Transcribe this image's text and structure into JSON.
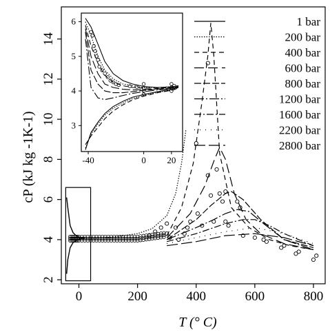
{
  "chart_data": {
    "type": "line",
    "xlabel": "T (° C)",
    "ylabel": "cP (kJ kg -1K-1)",
    "xlim": [
      -60,
      840
    ],
    "ylim": [
      1.8,
      15.6
    ],
    "xticks": [
      0,
      200,
      400,
      600,
      800
    ],
    "yticks": [
      2,
      4,
      6,
      8,
      10,
      12,
      14
    ],
    "legend_position": "top-right",
    "series": [
      {
        "name": "1 bar",
        "dash": "",
        "x": [],
        "y": []
      },
      {
        "name": "200 bar",
        "dash": "1.5,2",
        "x": [
          0,
          100,
          200,
          250,
          300,
          330,
          350,
          365
        ],
        "y": [
          4.05,
          4.1,
          4.3,
          4.55,
          5.2,
          6.3,
          7.8,
          9.5
        ]
      },
      {
        "name": "400 bar",
        "dash": "7,5",
        "x": [
          300,
          350,
          390,
          420,
          440,
          450,
          460,
          480,
          520,
          580,
          650,
          720,
          800
        ],
        "y": [
          4.2,
          5.6,
          7.8,
          10.9,
          13.2,
          14.8,
          13.2,
          8.3,
          5.6,
          4.6,
          4.0,
          3.7,
          3.5
        ]
      },
      {
        "name": "600 bar",
        "dash": "14,6",
        "x": [
          300,
          380,
          430,
          460,
          480,
          500,
          530,
          570,
          620,
          700,
          800
        ],
        "y": [
          4.1,
          5.3,
          6.7,
          7.9,
          8.6,
          8.0,
          6.3,
          5.0,
          4.3,
          3.8,
          3.5
        ]
      },
      {
        "name": "800 bar",
        "dash": "10,3",
        "x": [
          300,
          400,
          450,
          500,
          520,
          560,
          620,
          700,
          800
        ],
        "y": [
          4.0,
          5.0,
          5.7,
          6.3,
          6.4,
          6.0,
          5.0,
          4.0,
          3.6
        ]
      },
      {
        "name": "1200 bar",
        "dash": "14,3,2,3",
        "x": [
          300,
          400,
          460,
          500,
          540,
          580,
          630,
          700,
          800
        ],
        "y": [
          4.0,
          4.6,
          5.0,
          5.3,
          5.5,
          5.4,
          4.8,
          4.0,
          3.5
        ]
      },
      {
        "name": "1600 bar",
        "dash": "10,3,2,3",
        "x": [
          300,
          400,
          500,
          560,
          600,
          650,
          700,
          800
        ],
        "y": [
          3.9,
          4.3,
          4.8,
          5.0,
          5.0,
          4.7,
          4.3,
          3.7
        ]
      },
      {
        "name": "2200 bar",
        "dash": "1,7",
        "x": [
          300,
          400,
          500,
          600,
          700,
          800
        ],
        "y": [
          3.8,
          4.1,
          4.4,
          4.6,
          4.3,
          3.8
        ]
      },
      {
        "name": "2800 bar",
        "dash": "16,5",
        "x": [
          300,
          400,
          500,
          600,
          700,
          800
        ],
        "y": [
          3.7,
          3.9,
          4.2,
          4.3,
          4.1,
          3.7
        ]
      }
    ],
    "markers": {
      "style": "open circle",
      "points": [
        [
          360,
          4.3
        ],
        [
          370,
          4.6
        ],
        [
          380,
          4.9
        ],
        [
          400,
          8.8
        ],
        [
          405,
          5.3
        ],
        [
          420,
          4.7
        ],
        [
          440,
          12.8
        ],
        [
          440,
          7.2
        ],
        [
          450,
          6.2
        ],
        [
          460,
          4.9
        ],
        [
          470,
          7.5
        ],
        [
          480,
          6.3
        ],
        [
          490,
          5.9
        ],
        [
          500,
          6.4
        ],
        [
          500,
          4.9
        ],
        [
          510,
          4.7
        ],
        [
          540,
          5.9
        ],
        [
          550,
          5.6
        ],
        [
          560,
          4.2
        ],
        [
          600,
          4.1
        ],
        [
          630,
          4.0
        ],
        [
          640,
          3.9
        ],
        [
          690,
          3.6
        ],
        [
          700,
          3.7
        ],
        [
          740,
          3.3
        ],
        [
          750,
          3.4
        ],
        [
          800,
          3.0
        ],
        [
          810,
          3.2
        ],
        [
          300,
          4.3
        ],
        [
          300,
          4.8
        ],
        [
          310,
          4.1
        ],
        [
          330,
          4.6
        ],
        [
          340,
          4.0
        ],
        [
          280,
          4.6
        ],
        [
          260,
          4.4
        ],
        [
          240,
          4.2
        ]
      ]
    },
    "near_critical_points": {
      "x": [
        -30,
        -25,
        -20,
        -15,
        -10,
        -5,
        0,
        10,
        20,
        30,
        40,
        50,
        60,
        70,
        80,
        90,
        100,
        110,
        120,
        130,
        140,
        150,
        160,
        170,
        180,
        190,
        200,
        210,
        220,
        230,
        240,
        250,
        260,
        270,
        280,
        290
      ]
    },
    "inset": {
      "xlim": [
        -45,
        28
      ],
      "ylim": [
        2.25,
        6.25
      ],
      "xticks": [
        -40,
        0,
        20
      ],
      "yticks": [
        3,
        4,
        5,
        6
      ],
      "upper_curves": [
        {
          "x": [
            -42,
            -38,
            -33,
            -28,
            -22,
            -15,
            -8,
            0,
            10,
            20,
            25
          ],
          "y": [
            6.1,
            5.85,
            5.35,
            4.85,
            4.5,
            4.3,
            4.2,
            4.13,
            4.1,
            4.12,
            4.15
          ]
        },
        {
          "x": [
            -42,
            -38,
            -33,
            -28,
            -22,
            -15,
            -8,
            0,
            10,
            20,
            25
          ],
          "y": [
            6.0,
            5.6,
            5.0,
            4.6,
            4.35,
            4.2,
            4.15,
            4.1,
            4.1,
            4.12,
            4.15
          ]
        },
        {
          "x": [
            -42,
            -38,
            -33,
            -28,
            -22,
            -15,
            -8,
            0,
            10,
            20,
            25
          ],
          "y": [
            5.9,
            5.3,
            4.8,
            4.45,
            4.25,
            4.15,
            4.1,
            4.08,
            4.08,
            4.1,
            4.14
          ]
        },
        {
          "x": [
            -42,
            -38,
            -33,
            -28,
            -22,
            -15,
            -8,
            0,
            10,
            20,
            25
          ],
          "y": [
            5.8,
            5.0,
            4.5,
            4.2,
            4.1,
            4.05,
            4.03,
            4.04,
            4.06,
            4.08,
            4.12
          ]
        },
        {
          "x": [
            -42,
            -38,
            -33,
            -28,
            -22,
            -15,
            -8,
            0,
            10,
            20,
            25
          ],
          "y": [
            5.7,
            4.6,
            4.2,
            4.0,
            3.95,
            3.95,
            3.98,
            4.02,
            4.05,
            4.08,
            4.12
          ]
        },
        {
          "x": [
            -42,
            -38,
            -33,
            -28,
            -22,
            -15,
            -8,
            0,
            10,
            20,
            25
          ],
          "y": [
            5.5,
            4.1,
            3.8,
            3.75,
            3.8,
            3.87,
            3.93,
            3.98,
            4.03,
            4.07,
            4.1
          ]
        }
      ],
      "lower_curves": [
        {
          "x": [
            -42,
            -38,
            -33,
            -28,
            -22,
            -15,
            -8,
            0,
            10,
            20,
            25
          ],
          "y": [
            2.3,
            2.8,
            3.1,
            3.35,
            3.55,
            3.7,
            3.82,
            3.9,
            3.98,
            4.05,
            4.1
          ]
        },
        {
          "x": [
            -42,
            -38,
            -33,
            -28,
            -22,
            -15,
            -8,
            0,
            10,
            20,
            25
          ],
          "y": [
            2.35,
            2.75,
            3.05,
            3.3,
            3.5,
            3.65,
            3.78,
            3.87,
            3.96,
            4.03,
            4.08
          ]
        },
        {
          "x": [
            -42,
            -38,
            -33,
            -28,
            -22,
            -15,
            -8,
            0,
            10,
            20,
            25
          ],
          "y": [
            2.45,
            2.7,
            2.95,
            3.2,
            3.42,
            3.6,
            3.74,
            3.85,
            3.95,
            4.02,
            4.07
          ]
        }
      ],
      "markers": [
        [
          -38,
          5.7
        ],
        [
          -37,
          5.6
        ],
        [
          -36,
          5.3
        ],
        [
          -35,
          5.15
        ],
        [
          -34,
          5.0
        ],
        [
          -33,
          4.9
        ],
        [
          -32,
          4.7
        ],
        [
          -30,
          4.6
        ],
        [
          -28,
          4.5
        ],
        [
          -26,
          4.4
        ],
        [
          -24,
          4.3
        ],
        [
          -22,
          4.25
        ],
        [
          -20,
          4.2
        ],
        [
          -18,
          4.17
        ],
        [
          -10,
          4.14
        ],
        [
          -5,
          4.12
        ],
        [
          0,
          4.2
        ],
        [
          0,
          4.0
        ],
        [
          0,
          3.9
        ],
        [
          0,
          4.08
        ],
        [
          20,
          4.2
        ],
        [
          20,
          4.1
        ],
        [
          20,
          4.0
        ],
        [
          22,
          4.15
        ],
        [
          18,
          4.05
        ]
      ]
    }
  }
}
